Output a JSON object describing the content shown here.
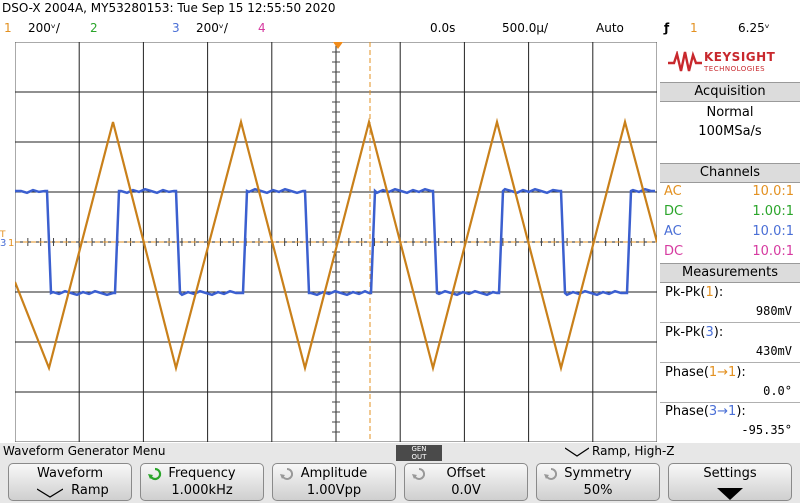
{
  "header": {
    "title": "DSO-X 2004A, MY53280153: Tue Sep 15 12:55:50 2020",
    "ch1_num": "1",
    "ch1_scale": "200ᵛ/",
    "ch2_num": "2",
    "ch3_num": "3",
    "ch3_scale": "200ᵛ/",
    "ch4_num": "4",
    "delay": "0.0s",
    "timebase": "500.0µ/",
    "trigger_mode": "Auto",
    "trigger_slope": "ƒ",
    "trigger_source": "1",
    "trigger_level": "6.25ᵛ"
  },
  "colors": {
    "ch1": "#e39121",
    "ch2": "#2aa52a",
    "ch3": "#4a6fd6",
    "ch4": "#d63aa0",
    "trace1": "#c9801a",
    "trace3": "#3b5fcf"
  },
  "sidebar": {
    "brand": "KEYSIGHT",
    "brand_sub": "TECHNOLOGIES",
    "acquisition_header": "Acquisition",
    "acq_mode": "Normal",
    "acq_rate": "100MSa/s",
    "channels_header": "Channels",
    "channels": [
      {
        "coupling": "AC",
        "probe": "10.0:1"
      },
      {
        "coupling": "DC",
        "probe": "1.00:1"
      },
      {
        "coupling": "AC",
        "probe": "10.0:1"
      },
      {
        "coupling": "DC",
        "probe": "10.0:1"
      }
    ],
    "measurements_header": "Measurements",
    "m1_label": "Pk-Pk(",
    "m1_ch": "1",
    "m1_value": "980mV",
    "m2_label": "Pk-Pk(",
    "m2_ch": "3",
    "m2_value": "430mV",
    "m3_label": "Phase(",
    "m3_ch": "1→1",
    "m3_value": "0.0°",
    "m4_label": "Phase(",
    "m4_ch": "3→1",
    "m4_value": "-95.35°"
  },
  "softkeys": {
    "menu_title": "Waveform Generator Menu",
    "gen_out_line1": "GEN",
    "gen_out_line2": "OUT",
    "status": "Ramp, High-Z",
    "status_icon": "ramp-icon",
    "waveform_label": "Waveform",
    "waveform_value": "Ramp",
    "frequency_label": "Frequency",
    "frequency_value": "1.000kHz",
    "amplitude_label": "Amplitude",
    "amplitude_value": "1.00Vpp",
    "offset_label": "Offset",
    "offset_value": "0.0V",
    "symmetry_label": "Symmetry",
    "symmetry_value": "50%",
    "settings_label": "Settings"
  },
  "markers": {
    "ch1_marker": "1",
    "ch3_marker": "3",
    "trig_marker": "T"
  }
}
